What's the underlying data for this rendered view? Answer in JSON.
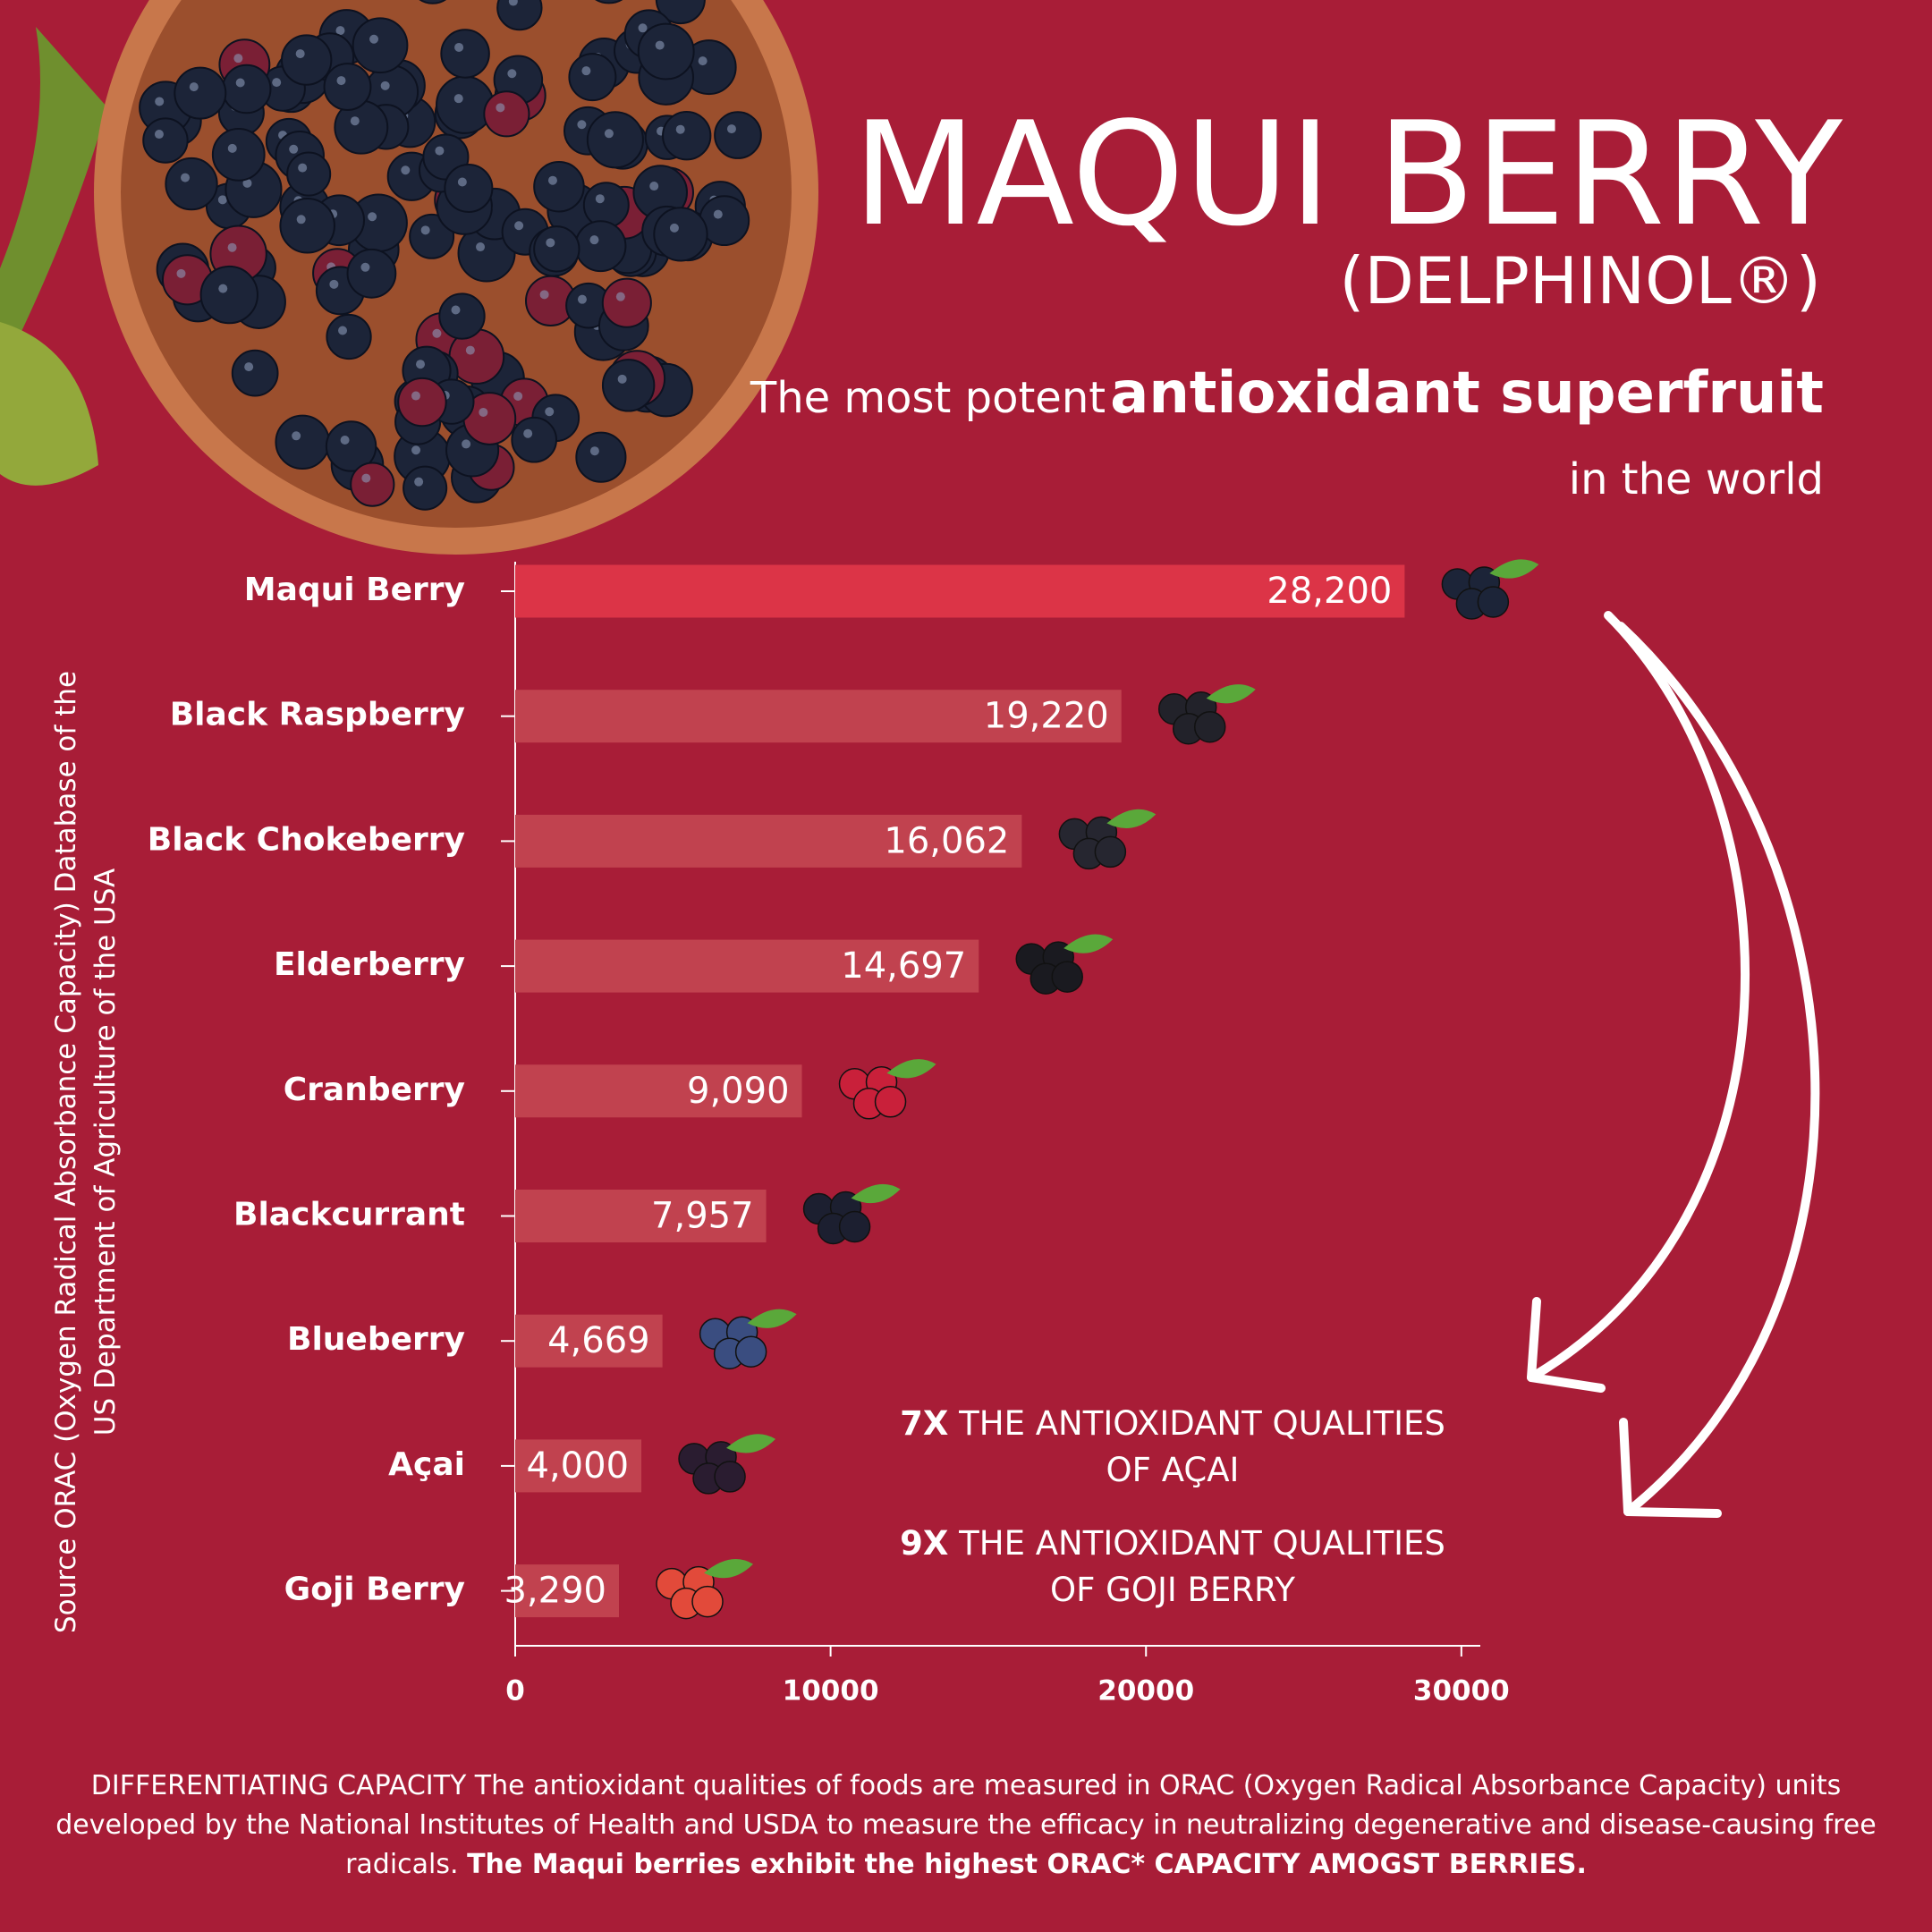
{
  "chart_data": {
    "type": "bar",
    "orientation": "horizontal",
    "title": "MAQUI BERRY",
    "subtitle": "(DELPHINOL®)",
    "tagline": {
      "lead": "The most potent",
      "emphasis": "antioxidant superfruit",
      "tail": "in the world"
    },
    "categories": [
      "Maqui Berry",
      "Black Raspberry",
      "Black Chokeberry",
      "Elderberry",
      "Cranberry",
      "Blackcurrant",
      "Blueberry",
      "Açai",
      "Goji Berry"
    ],
    "values": [
      28200,
      19220,
      16062,
      14697,
      9090,
      7957,
      4669,
      4000,
      3290
    ],
    "value_labels": [
      "28,200",
      "19,220",
      "16,062",
      "14,697",
      "9,090",
      "7,957",
      "4,669",
      "4,000",
      "3,290"
    ],
    "colors": [
      "#dc3447",
      "#c1424f",
      "#c1424f",
      "#c1424f",
      "#c1424f",
      "#c1424f",
      "#c1424f",
      "#c1424f",
      "#c1424f"
    ],
    "xlim": [
      0,
      30600
    ],
    "xticks": [
      0,
      10000,
      20000,
      30000
    ],
    "source": "Source ORAC (Oxygen Radical Absorbance Capacity) Database of the US Department of Agriculture of the USA",
    "annotations": [
      {
        "emphasis": "7X",
        "text": "THE ANTIOXIDANT QUALITIES OF AÇAI"
      },
      {
        "emphasis": "9X",
        "text": "THE ANTIOXIDANT QUALITIES OF GOJI BERRY"
      }
    ],
    "footer": {
      "text": "DIFFERENTIATING CAPACITY The antioxidant qualities of foods are measured in ORAC (Oxygen Radical Absorbance Capacity) units developed by the National Institutes of Health and USDA to measure the efficacy in neutralizing degenerative and disease-causing free radicals.",
      "emphasis": "The Maqui berries exhibit the highest ORAC* CAPACITY AMOGST BERRIES."
    }
  }
}
